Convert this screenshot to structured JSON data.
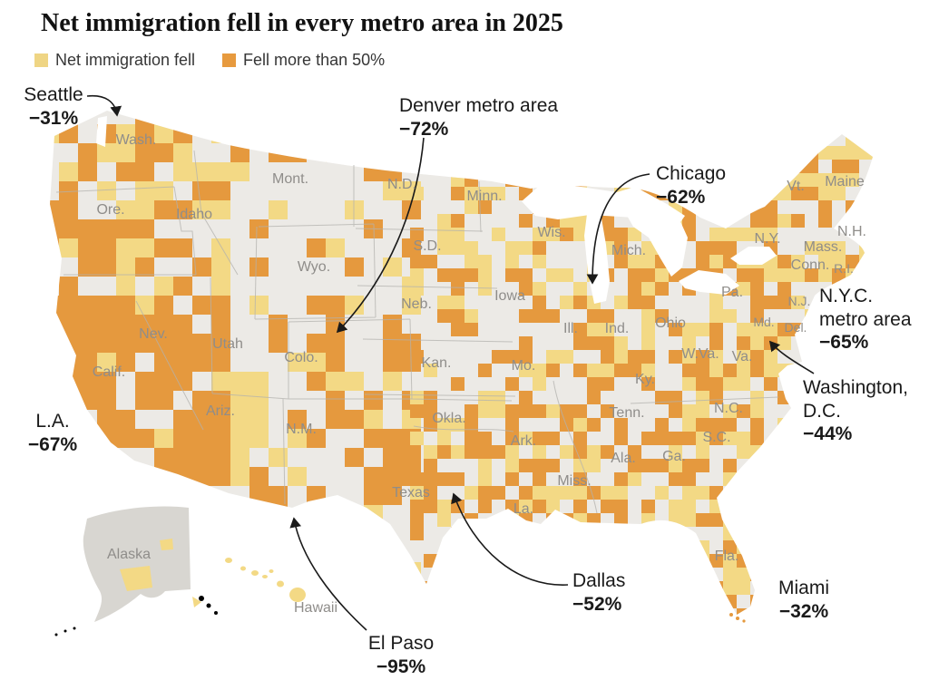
{
  "title": "Net immigration fell in every metro area in 2025",
  "legend": {
    "items": [
      {
        "label": "Net immigration fell",
        "color": "#EFD584"
      },
      {
        "label": "Fell more than 50%",
        "color": "#E79A3E"
      }
    ]
  },
  "map": {
    "colors": {
      "fell": "#F3D985",
      "fell_more_50": "#E5993E",
      "land": "#ECEAE6",
      "alaska_land": "#D8D6D1",
      "border": "#B3B1AE",
      "state_label": "#8F8D8A",
      "arrow": "#1A1A1A"
    },
    "state_labels": [
      "Wash.",
      "Ore.",
      "Idaho",
      "Mont.",
      "Wyo.",
      "N.D.",
      "S.D.",
      "Minn.",
      "Wis.",
      "Mich.",
      "Neb.",
      "Iowa",
      "Ill.",
      "Ind.",
      "Ohio",
      "Pa.",
      "N.Y.",
      "Vt.",
      "Maine",
      "N.H.",
      "Mass.",
      "Conn.",
      "R.I.",
      "N.J.",
      "Md.",
      "Del.",
      "W.Va.",
      "Va.",
      "Ky.",
      "Mo.",
      "Kan.",
      "Colo.",
      "Utah",
      "Nev.",
      "Calif.",
      "Ariz.",
      "N.M.",
      "Okla.",
      "Ark.",
      "Tenn.",
      "N.C.",
      "S.C.",
      "Ga.",
      "Ala.",
      "Miss.",
      "La.",
      "Texas",
      "Fla.",
      "Alaska",
      "Hawaii"
    ],
    "annotations": [
      {
        "id": "seattle",
        "place": "Seattle",
        "value": "−31%"
      },
      {
        "id": "denver",
        "place": "Denver metro area",
        "value": "−72%"
      },
      {
        "id": "chicago",
        "place": "Chicago",
        "value": "−62%"
      },
      {
        "id": "nyc",
        "place": "N.Y.C. metro area",
        "value": "−65%"
      },
      {
        "id": "washington-dc",
        "place": "Washington, D.C.",
        "value": "−44%"
      },
      {
        "id": "la",
        "place": "L.A.",
        "value": "−67%"
      },
      {
        "id": "dallas",
        "place": "Dallas",
        "value": "−52%"
      },
      {
        "id": "el-paso",
        "place": "El Paso",
        "value": "−95%"
      },
      {
        "id": "miami",
        "place": "Miami",
        "value": "−32%"
      }
    ]
  },
  "chart_data": {
    "type": "choropleth",
    "title": "Net immigration fell in every metro area in 2025",
    "geography": "U.S. metro areas shown as county blocks, including Alaska and Hawaii",
    "classes": [
      {
        "label": "Net immigration fell",
        "color": "#EFD584"
      },
      {
        "label": "Fell more than 50%",
        "color": "#E79A3E"
      }
    ],
    "annotated_values": [
      {
        "metro": "Seattle",
        "change_pct": -31
      },
      {
        "metro": "Denver metro area",
        "change_pct": -72
      },
      {
        "metro": "Chicago",
        "change_pct": -62
      },
      {
        "metro": "N.Y.C. metro area",
        "change_pct": -65
      },
      {
        "metro": "Washington, D.C.",
        "change_pct": -44
      },
      {
        "metro": "L.A.",
        "change_pct": -67
      },
      {
        "metro": "Dallas",
        "change_pct": -52
      },
      {
        "metro": "El Paso",
        "change_pct": -95
      },
      {
        "metro": "Miami",
        "change_pct": -32
      }
    ]
  }
}
